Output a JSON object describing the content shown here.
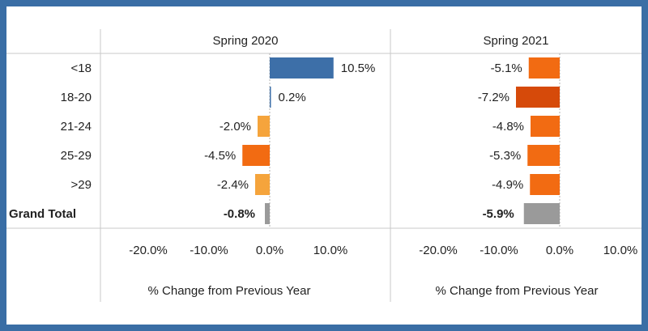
{
  "chart_data": {
    "type": "bar",
    "orientation": "horizontal",
    "categories": [
      "<18",
      "18-20",
      "21-24",
      "25-29",
      ">29",
      "Grand Total"
    ],
    "panels": [
      {
        "title": "Spring 2020",
        "values": [
          10.5,
          0.2,
          -2.0,
          -4.5,
          -2.4,
          -0.8
        ],
        "labels": [
          "10.5%",
          "0.2%",
          "-2.0%",
          "-4.5%",
          "-2.4%",
          "-0.8%"
        ],
        "colors": [
          "#3d6fa8",
          "#3d6fa8",
          "#f5a43c",
          "#f26b12",
          "#f5a43c",
          "#9a9a9a"
        ]
      },
      {
        "title": "Spring 2021",
        "values": [
          -5.1,
          -7.2,
          -4.8,
          -5.3,
          -4.9,
          -5.9
        ],
        "labels": [
          "-5.1%",
          "-7.2%",
          "-4.8%",
          "-5.3%",
          "-4.9%",
          "-5.9%"
        ],
        "colors": [
          "#f26b12",
          "#d64a0a",
          "#f26b12",
          "#f26b12",
          "#f26b12",
          "#9a9a9a"
        ]
      }
    ],
    "xlim": [
      -25,
      12
    ],
    "ticks": [
      -20,
      -10,
      0,
      10
    ],
    "tick_labels": [
      "-20.0%",
      "-10.0%",
      "0.0%",
      "10.0%"
    ],
    "xlabel": "% Change from Previous Year",
    "bold_rows": [
      "Grand Total"
    ]
  }
}
